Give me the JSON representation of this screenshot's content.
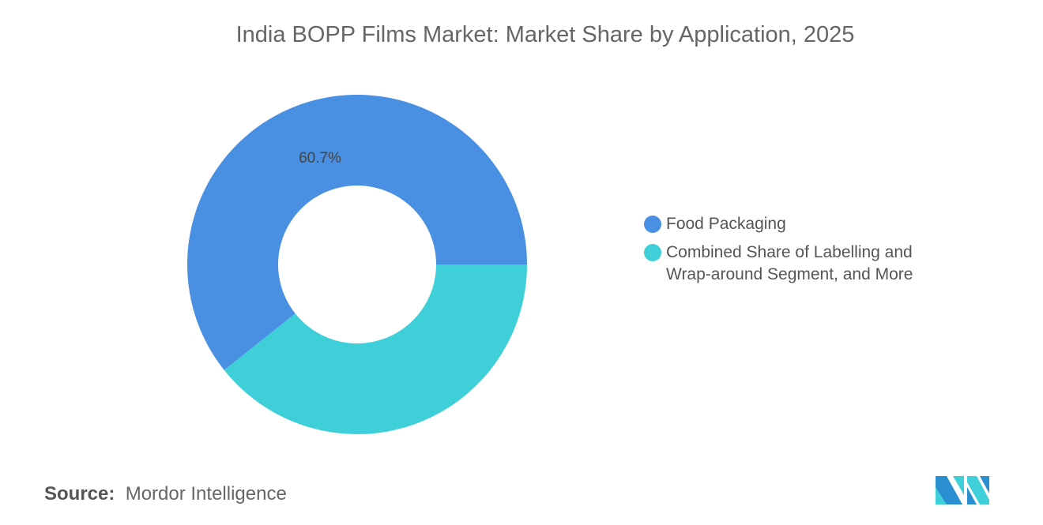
{
  "title": "India BOPP Films Market: Market Share by Application, 2025",
  "chart_data": {
    "type": "pie",
    "variant": "donut",
    "title": "India BOPP Films Market: Market Share by Application, 2025",
    "categories": [
      "Food Packaging",
      "Combined Share of Labelling and Wrap-around Segment, and More"
    ],
    "values": [
      60.7,
      39.3
    ],
    "data_labels": [
      "60.7%",
      ""
    ],
    "colors": [
      "#4a90e2",
      "#3ecfd8"
    ],
    "legend_placement": "right"
  },
  "legend": [
    {
      "label_lines": [
        "Food Packaging"
      ]
    },
    {
      "label_lines": [
        "Combined Share of Labelling and",
        "Wrap-around Segment, and More"
      ]
    }
  ],
  "source": {
    "label": "Source:",
    "value": "Mordor Intelligence"
  },
  "logo": {
    "icon": "mordor-intelligence-logo",
    "text": "Mordor Intelligence"
  }
}
